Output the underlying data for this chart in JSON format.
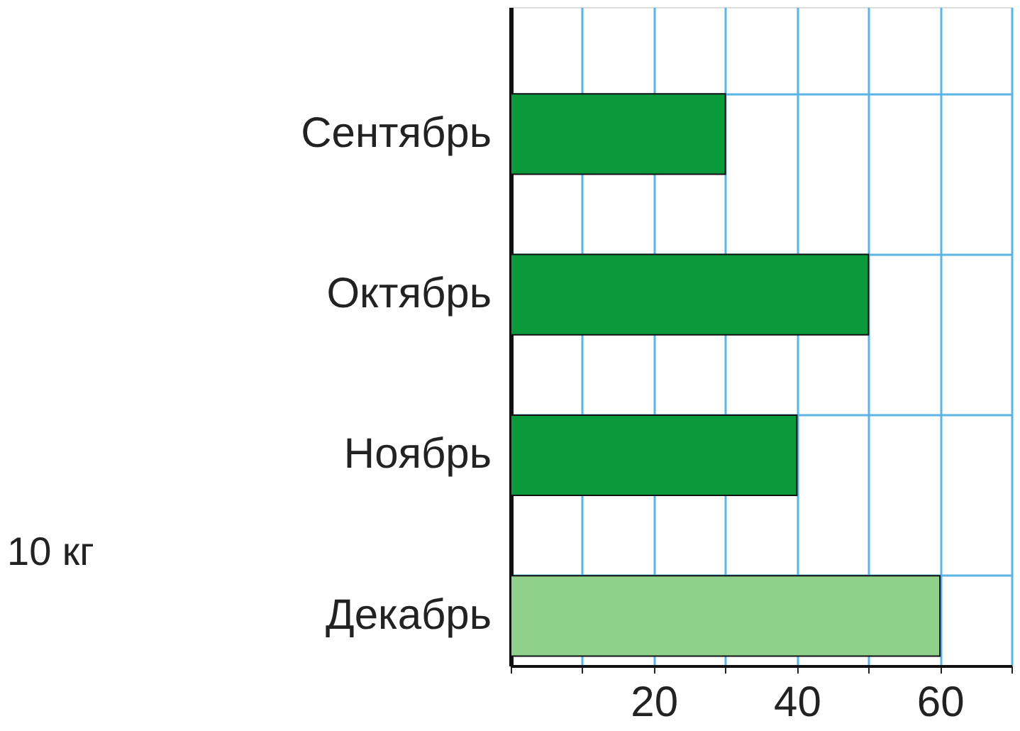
{
  "chart_data": {
    "type": "bar",
    "orientation": "horizontal",
    "categories": [
      "Сентябрь",
      "Октябрь",
      "Ноябрь",
      "Декабрь"
    ],
    "values": [
      30,
      50,
      40,
      60
    ],
    "colors": [
      "#0a9a3c",
      "#0a9a3c",
      "#0a9a3c",
      "#8fd18a"
    ],
    "xlim": [
      0,
      70
    ],
    "xticks": [
      {
        "value": 0,
        "label": null
      },
      {
        "value": 10,
        "label": null
      },
      20,
      {
        "value": 30,
        "label": null
      },
      40,
      {
        "value": 50,
        "label": null
      },
      60,
      {
        "value": 70,
        "label": null
      }
    ],
    "grid": true,
    "annotations": [
      "10 кг"
    ]
  }
}
